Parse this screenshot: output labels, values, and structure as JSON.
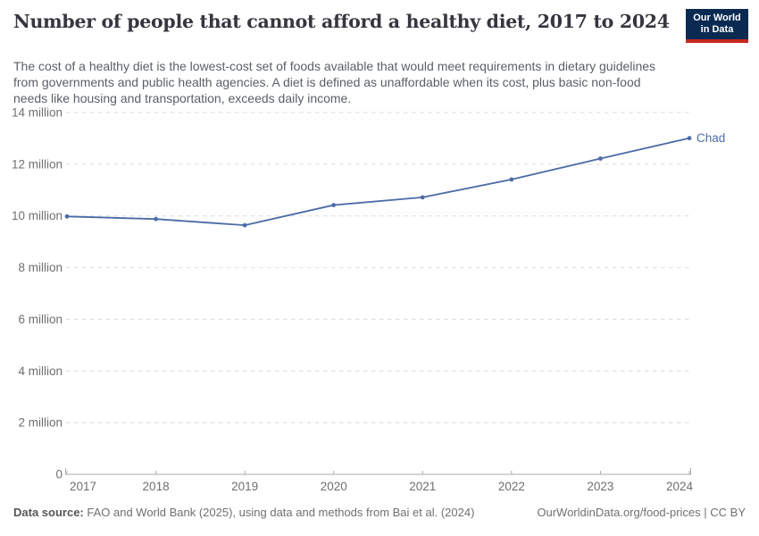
{
  "header": {
    "title": "Number of people that cannot afford a healthy diet, 2017 to 2024",
    "logo": {
      "line1": "Our World",
      "line2": "in Data",
      "bg_color": "#0A2A52",
      "stripe_color": "#C5281F"
    }
  },
  "subtitle": "The cost of a healthy diet is the lowest-cost set of foods available that would meet requirements in dietary guidelines from governments and public health agencies. A diet is defined as unaffordable when its cost, plus basic non-food needs like housing and transportation, exceeds daily income.",
  "chart_data": {
    "type": "line",
    "title": "Number of people that cannot afford a healthy diet, 2017 to 2024",
    "xlabel": "",
    "ylabel": "",
    "x": [
      2017,
      2018,
      2019,
      2020,
      2021,
      2022,
      2023,
      2024
    ],
    "series": [
      {
        "name": "Chad",
        "values_millions": [
          9.98,
          9.88,
          9.64,
          10.42,
          10.72,
          11.41,
          12.22,
          13.01
        ],
        "color": "#4C6CA6",
        "end_label": "Chad"
      }
    ],
    "unit": "million people",
    "ylim_millions": [
      0,
      14
    ],
    "yticks_millions": [
      0,
      2,
      4,
      6,
      8,
      10,
      12,
      14
    ],
    "ytick_labels": [
      "0",
      "2 million",
      "4 million",
      "6 million",
      "8 million",
      "10 million",
      "12 million",
      "14 million"
    ],
    "grid": "horizontal dashed",
    "legend": "line-end label",
    "style": {
      "grid_color": "#DBDBDB",
      "axis_color": "#ABABAB",
      "tick_text_color": "#6F6F6F"
    }
  },
  "footer": {
    "datasource_label": "Data source:",
    "datasource_text": " FAO and World Bank (2025), using data and methods from Bai et al. (2024)",
    "credit": "OurWorldinData.org/food-prices | CC BY"
  }
}
